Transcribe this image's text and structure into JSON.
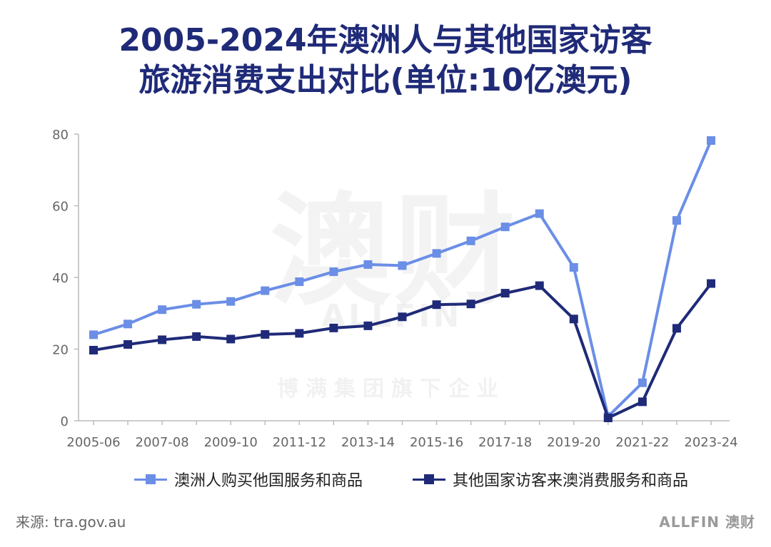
{
  "chart_data": {
    "type": "line",
    "title_line1": "2005-2024年澳洲人与其他国家访客",
    "title_line2": "旅游消费支出对比(单位:10亿澳元)",
    "categories": [
      "2005-06",
      "2006-07",
      "2007-08",
      "2008-09",
      "2009-10",
      "2010-11",
      "2011-12",
      "2012-13",
      "2013-14",
      "2014-15",
      "2015-16",
      "2016-17",
      "2017-18",
      "2018-19",
      "2019-20",
      "2020-21",
      "2021-22",
      "2022-23",
      "2023-24"
    ],
    "tick_labels": [
      "2005-06",
      "2007-08",
      "2009-10",
      "2011-12",
      "2013-14",
      "2015-16",
      "2017-18",
      "2019-20",
      "2021-22",
      "2023-24"
    ],
    "y_ticks": [
      0,
      20,
      40,
      60,
      80
    ],
    "ylim": [
      0,
      80
    ],
    "grid": false,
    "legend_position": "bottom",
    "series": [
      {
        "name": "澳洲人购买他国服务和商品",
        "color": "#6b8ee6",
        "values": [
          24,
          27,
          31,
          32.5,
          33.3,
          36.3,
          38.8,
          41.6,
          43.6,
          43.3,
          46.7,
          50.2,
          54.1,
          57.8,
          42.8,
          1.2,
          10.6,
          55.9,
          78.2
        ]
      },
      {
        "name": "其他国家访客来澳消费服务和商品",
        "color": "#1f2a78",
        "values": [
          19.7,
          21.3,
          22.6,
          23.5,
          22.8,
          24.1,
          24.4,
          25.9,
          26.5,
          29,
          32.4,
          32.6,
          35.6,
          37.7,
          28.4,
          0.8,
          5.3,
          25.8,
          38.3
        ]
      }
    ]
  },
  "source": "来源: tra.gov.au",
  "logo": "ALLFIN 澳财",
  "watermark": {
    "big": "澳财",
    "mid": "ALLFIN",
    "small": "博满集团旗下企业"
  }
}
